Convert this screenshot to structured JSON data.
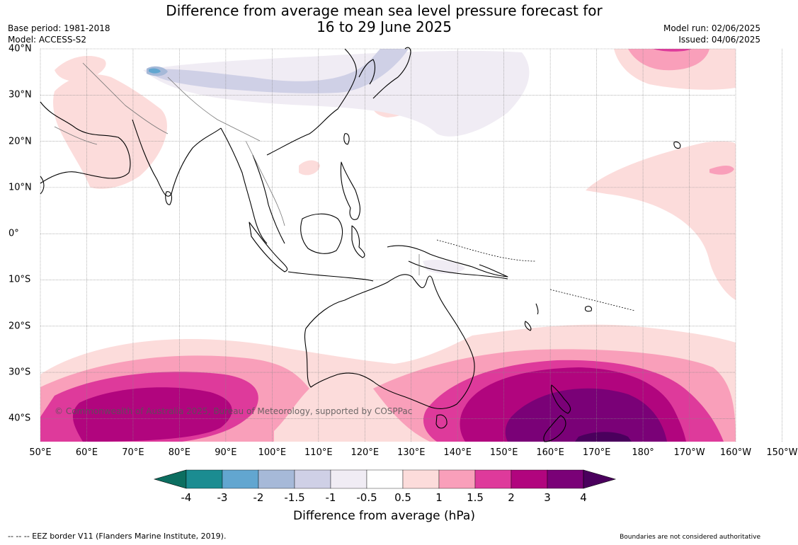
{
  "title": {
    "line1": "Difference from average mean sea level pressure forecast for",
    "line2": "16 to 29 June 2025"
  },
  "meta_left": {
    "base_period": "Base period: 1981-2018",
    "model": "Model: ACCESS-S2"
  },
  "meta_right": {
    "model_run": "Model run: 02/06/2025",
    "issued": "Issued: 04/06/2025"
  },
  "map": {
    "extent": {
      "lon_min": 50,
      "lon_max": 200,
      "lat_min": -45,
      "lat_max": 40
    },
    "lon_labels": [
      "50°E",
      "60°E",
      "70°E",
      "80°E",
      "90°E",
      "100°E",
      "110°E",
      "120°E",
      "130°E",
      "140°E",
      "150°E",
      "160°E",
      "170°E",
      "180°",
      "170°W",
      "160°W",
      "150°W"
    ],
    "lat_labels": [
      "40°N",
      "30°N",
      "20°N",
      "10°N",
      "0°",
      "10°S",
      "20°S",
      "30°S",
      "40°S"
    ],
    "copyright": "© Commonwealth of Australia 2025, Bureau of Meteorology, supported by COSPPac"
  },
  "colorbar": {
    "ticks": [
      "-4",
      "-3",
      "-2",
      "-1.5",
      "-1",
      "-0.5",
      "0.5",
      "1",
      "1.5",
      "2",
      "3",
      "4"
    ],
    "colors": [
      "#1b8c91",
      "#62a6d0",
      "#a6b9d8",
      "#cfd0e6",
      "#f0ecf4",
      "#ffffff",
      "#fcdcdb",
      "#f99fba",
      "#de3a9b",
      "#b1057e",
      "#7a0177"
    ],
    "under_color": "#0c6e60",
    "over_color": "#4a005d",
    "label": "Difference from average (hPa)"
  },
  "footer": {
    "eez": "--  --  -- EEZ border V11 (Flanders Marine Institute, 2019).",
    "boundaries": "Boundaries are not considered authoritative"
  }
}
